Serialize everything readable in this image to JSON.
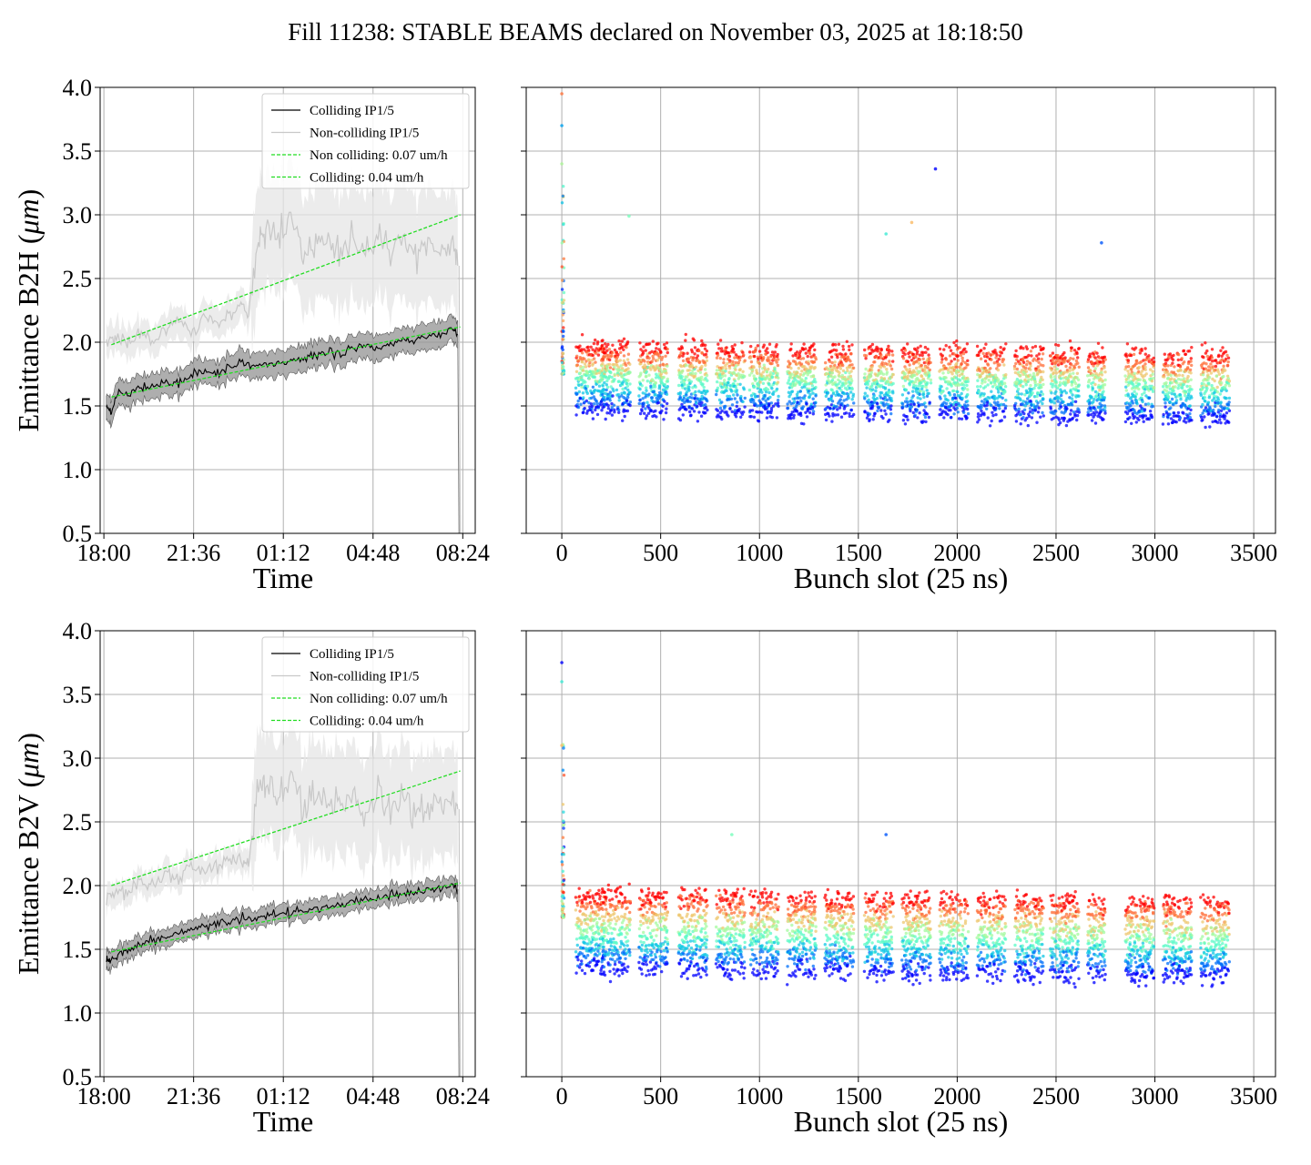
{
  "figure": {
    "title": "Fill 11238: STABLE BEAMS declared on November 03, 2025 at 18:18:50"
  },
  "chart_data": [
    {
      "type": "line",
      "panel": "top-left",
      "ylabel_prefix": "Emittance B2H (",
      "ylabel_unit": "μm",
      "ylabel_suffix": ")",
      "xlabel": "Time",
      "x_ticks": [
        "18:00",
        "21:36",
        "01:12",
        "04:48",
        "08:24"
      ],
      "x_tick_hours": [
        0,
        3.6,
        7.2,
        10.8,
        14.4
      ],
      "xlim_hours": [
        -0.15,
        14.9
      ],
      "ylim": [
        0.5,
        4.0
      ],
      "y_ticks": [
        "0.5",
        "1.0",
        "1.5",
        "2.0",
        "2.5",
        "3.0",
        "3.5",
        "4.0"
      ],
      "grid": true,
      "legend_position": "top-right",
      "legend": [
        "Colliding IP1/5",
        "Non-colliding IP1/5",
        "Non colliding: 0.07 um/h",
        "Colliding: 0.04 um/h"
      ],
      "series": [
        {
          "name": "Colliding IP1/5",
          "color": "#000000",
          "x_hours": [
            0.1,
            0.3,
            0.6,
            1,
            1.5,
            2,
            2.5,
            3,
            3.5,
            4,
            4.5,
            5,
            5.5,
            6,
            6.5,
            7,
            7.5,
            8,
            8.5,
            9,
            9.5,
            10,
            10.5,
            11,
            11.5,
            12,
            12.5,
            13,
            13.5,
            14,
            14.2
          ],
          "y": [
            1.5,
            1.45,
            1.62,
            1.58,
            1.66,
            1.65,
            1.68,
            1.68,
            1.74,
            1.77,
            1.75,
            1.78,
            1.85,
            1.8,
            1.82,
            1.83,
            1.86,
            1.87,
            1.91,
            1.92,
            1.91,
            1.95,
            1.97,
            1.95,
            1.99,
            2.01,
            2.03,
            2.05,
            2.07,
            2.1,
            2.06
          ],
          "band_half_width": 0.1
        },
        {
          "name": "Non-colliding IP1/5",
          "color": "#c8c8c8",
          "x_hours": [
            0.1,
            0.5,
            1,
            1.5,
            2,
            2.5,
            3,
            3.5,
            4,
            4.5,
            5,
            5.5,
            5.8,
            6.2,
            6.5,
            7,
            7.5,
            8,
            8.5,
            9,
            9.5,
            10,
            10.5,
            11,
            11.5,
            12,
            12.5,
            13,
            13.5,
            14,
            14.2
          ],
          "y": [
            2.0,
            2.05,
            2.0,
            2.1,
            2.0,
            2.1,
            2.2,
            2.05,
            2.2,
            2.15,
            2.2,
            2.3,
            2.2,
            2.75,
            2.9,
            2.8,
            2.95,
            2.7,
            2.85,
            2.8,
            2.65,
            2.85,
            2.7,
            2.9,
            2.75,
            2.85,
            2.65,
            2.8,
            2.7,
            2.8,
            2.6
          ],
          "band_half_width_before": 0.12,
          "band_half_width_after": 0.45,
          "band_step_hour": 5.9
        },
        {
          "name": "Non colliding: 0.07 um/h",
          "color": "#22dd22",
          "fit_x_hours": [
            0.3,
            14.3
          ],
          "fit_y": [
            1.98,
            3.0
          ]
        },
        {
          "name": "Colliding: 0.04 um/h",
          "color": "#22dd22",
          "fit_x_hours": [
            0.3,
            14.3
          ],
          "fit_y": [
            1.57,
            2.12
          ]
        }
      ]
    },
    {
      "type": "scatter",
      "panel": "top-right",
      "xlabel": "Bunch slot (25 ns)",
      "x_ticks": [
        "0",
        "500",
        "1000",
        "1500",
        "2000",
        "2500",
        "3000",
        "3500"
      ],
      "xlim": [
        -180,
        3610
      ],
      "ylim": [
        0.5,
        4.0
      ],
      "grid": true,
      "colormap": "rainbow",
      "train_starts": [
        70,
        200,
        390,
        590,
        780,
        950,
        1140,
        1330,
        1530,
        1720,
        1910,
        2100,
        2290,
        2470,
        2660,
        2850,
        3040,
        3230
      ],
      "train_lengths": [
        145,
        145,
        145,
        145,
        145,
        145,
        145,
        145,
        145,
        145,
        145,
        145,
        145,
        145,
        90,
        145,
        145,
        145
      ],
      "colour_levels_high_to_low": [
        1.95,
        1.88,
        1.8,
        1.75,
        1.7,
        1.62,
        1.55,
        1.48
      ],
      "outliers": [
        [
          1890,
          3.36
        ],
        [
          1640,
          2.85
        ],
        [
          1770,
          2.94
        ],
        [
          2730,
          2.78
        ],
        [
          340,
          2.99
        ],
        [
          0,
          3.95
        ],
        [
          0,
          3.7
        ],
        [
          0,
          3.4
        ]
      ]
    },
    {
      "type": "line",
      "panel": "bottom-left",
      "ylabel_prefix": "Emittance B2V (",
      "ylabel_unit": "μm",
      "ylabel_suffix": ")",
      "xlabel": "Time",
      "x_ticks": [
        "18:00",
        "21:36",
        "01:12",
        "04:48",
        "08:24"
      ],
      "x_tick_hours": [
        0,
        3.6,
        7.2,
        10.8,
        14.4
      ],
      "xlim_hours": [
        -0.15,
        14.9
      ],
      "ylim": [
        0.5,
        4.0
      ],
      "y_ticks": [
        "0.5",
        "1.0",
        "1.5",
        "2.0",
        "2.5",
        "3.0",
        "3.5",
        "4.0"
      ],
      "grid": true,
      "legend_position": "top-right",
      "legend": [
        "Colliding IP1/5",
        "Non-colliding IP1/5",
        "Non colliding: 0.07 um/h",
        "Colliding: 0.04 um/h"
      ],
      "series": [
        {
          "name": "Colliding IP1/5",
          "color": "#000000",
          "x_hours": [
            0.1,
            0.3,
            0.6,
            1,
            1.5,
            2,
            2.5,
            3,
            3.5,
            4,
            4.5,
            5,
            5.5,
            6,
            6.5,
            7,
            7.5,
            8,
            8.5,
            9,
            9.5,
            10,
            10.5,
            11,
            11.5,
            12,
            12.5,
            13,
            13.5,
            14,
            14.2
          ],
          "y": [
            1.4,
            1.42,
            1.45,
            1.5,
            1.53,
            1.58,
            1.6,
            1.63,
            1.66,
            1.68,
            1.7,
            1.72,
            1.75,
            1.74,
            1.77,
            1.78,
            1.79,
            1.8,
            1.82,
            1.84,
            1.85,
            1.88,
            1.89,
            1.9,
            1.93,
            1.93,
            1.95,
            1.96,
            1.98,
            2.0,
            1.97
          ],
          "band_half_width": 0.07
        },
        {
          "name": "Non-colliding IP1/5",
          "color": "#c8c8c8",
          "x_hours": [
            0.1,
            0.5,
            1,
            1.5,
            2,
            2.5,
            3,
            3.5,
            4,
            4.5,
            5,
            5.5,
            5.8,
            6.2,
            6.5,
            7,
            7.5,
            8,
            8.5,
            9,
            9.5,
            10,
            10.5,
            11,
            11.5,
            12,
            12.5,
            13,
            13.5,
            14,
            14.2
          ],
          "y": [
            1.9,
            1.95,
            1.95,
            2.05,
            2.0,
            2.1,
            2.05,
            2.15,
            2.1,
            2.15,
            2.2,
            2.2,
            2.15,
            2.75,
            2.8,
            2.7,
            2.85,
            2.6,
            2.75,
            2.7,
            2.6,
            2.7,
            2.6,
            2.75,
            2.6,
            2.7,
            2.55,
            2.65,
            2.6,
            2.65,
            2.6
          ],
          "band_half_width_before": 0.1,
          "band_half_width_after": 0.42,
          "band_step_hour": 5.9
        },
        {
          "name": "Non colliding: 0.07 um/h",
          "color": "#22dd22",
          "fit_x_hours": [
            0.3,
            14.3
          ],
          "fit_y": [
            2.0,
            2.9
          ]
        },
        {
          "name": "Colliding: 0.04 um/h",
          "color": "#22dd22",
          "fit_x_hours": [
            0.3,
            14.3
          ],
          "fit_y": [
            1.48,
            2.02
          ]
        }
      ]
    },
    {
      "type": "scatter",
      "panel": "bottom-right",
      "xlabel": "Bunch slot (25 ns)",
      "x_ticks": [
        "0",
        "500",
        "1000",
        "1500",
        "2000",
        "2500",
        "3000",
        "3500"
      ],
      "xlim": [
        -180,
        3610
      ],
      "ylim": [
        0.5,
        4.0
      ],
      "grid": true,
      "colormap": "rainbow",
      "train_starts": [
        70,
        200,
        390,
        590,
        780,
        950,
        1140,
        1330,
        1530,
        1720,
        1910,
        2100,
        2290,
        2470,
        2660,
        2850,
        3040,
        3230
      ],
      "train_lengths": [
        145,
        145,
        145,
        145,
        145,
        145,
        145,
        145,
        145,
        145,
        145,
        145,
        145,
        145,
        90,
        145,
        145,
        145
      ],
      "colour_levels_high_to_low": [
        1.92,
        1.85,
        1.75,
        1.68,
        1.6,
        1.52,
        1.45,
        1.36
      ],
      "outliers": [
        [
          0,
          3.75
        ],
        [
          0,
          3.6
        ],
        [
          0,
          3.1
        ],
        [
          1640,
          2.4
        ],
        [
          860,
          2.4
        ]
      ]
    }
  ]
}
